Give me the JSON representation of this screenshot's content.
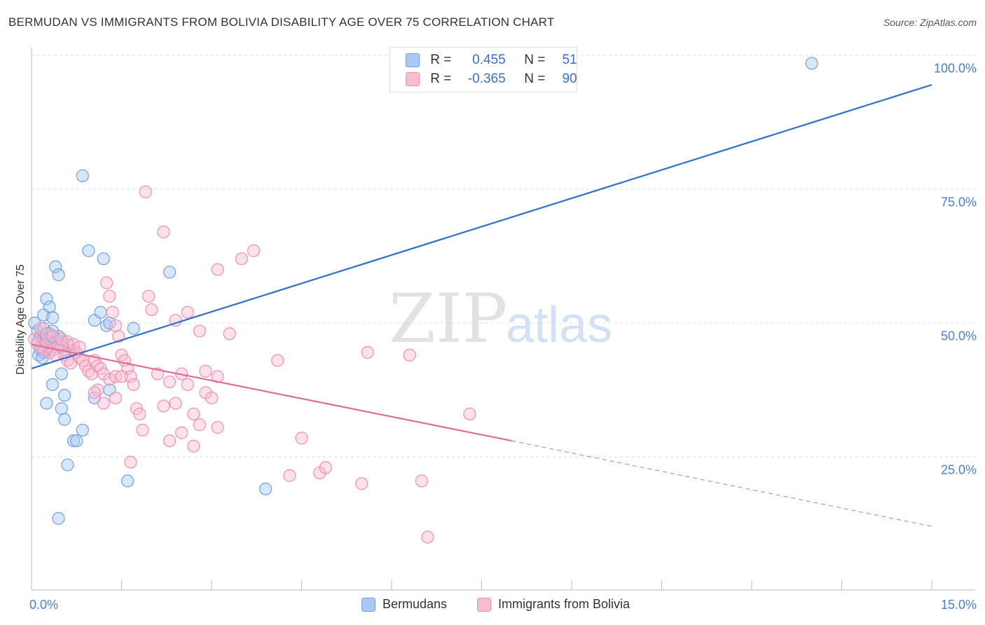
{
  "title": "BERMUDAN VS IMMIGRANTS FROM BOLIVIA DISABILITY AGE OVER 75 CORRELATION CHART",
  "source": "Source: ZipAtlas.com",
  "watermark": {
    "zip": "ZIP",
    "atlas": "atlas"
  },
  "legend": {
    "rows": [
      {
        "r_label": "R =",
        "r_value": "0.455",
        "n_label": "N =",
        "n_value": "51",
        "color": "#a9c8f5"
      },
      {
        "r_label": "R =",
        "r_value": "-0.365",
        "n_label": "N =",
        "n_value": "90",
        "color": "#f8bcd0"
      }
    ]
  },
  "bottom_legend": [
    {
      "label": "Bermudans",
      "color": "#a9c8f5"
    },
    {
      "label": "Immigrants from Bolivia",
      "color": "#f8bcd0"
    }
  ],
  "chart_data": {
    "type": "scatter",
    "title": "BERMUDAN VS IMMIGRANTS FROM BOLIVIA DISABILITY AGE OVER 75 CORRELATION CHART",
    "xlabel": "",
    "ylabel": "Disability Age Over 75",
    "xlim": [
      0,
      15
    ],
    "ylim": [
      0,
      105
    ],
    "x_tick_labels": [
      "0.0%",
      "15.0%"
    ],
    "y_ticks": [
      25,
      50,
      75,
      100
    ],
    "y_tick_labels": [
      "25.0%",
      "50.0%",
      "75.0%",
      "100.0%"
    ],
    "grid": true,
    "series": [
      {
        "name": "Bermudans",
        "color": "#6fa0e6",
        "fill": "#a9c8f5",
        "trend": {
          "x": [
            0,
            15
          ],
          "y": [
            41.5,
            94.5
          ],
          "color": "#2f6fd0",
          "dashed_from": null
        },
        "points": [
          [
            0.05,
            50
          ],
          [
            0.1,
            48.5
          ],
          [
            0.15,
            47.5
          ],
          [
            0.2,
            47
          ],
          [
            0.1,
            46.5
          ],
          [
            0.25,
            46
          ],
          [
            0.3,
            45.5
          ],
          [
            0.15,
            45
          ],
          [
            0.35,
            45.5
          ],
          [
            0.2,
            44.5
          ],
          [
            0.4,
            47
          ],
          [
            0.5,
            46.5
          ],
          [
            0.55,
            45
          ],
          [
            0.45,
            47.5
          ],
          [
            0.6,
            46
          ],
          [
            0.3,
            48
          ],
          [
            0.2,
            49
          ],
          [
            0.35,
            48.5
          ],
          [
            0.12,
            44
          ],
          [
            0.18,
            43.5
          ],
          [
            0.4,
            60.5
          ],
          [
            0.45,
            59
          ],
          [
            0.25,
            54.5
          ],
          [
            0.3,
            53
          ],
          [
            0.2,
            51.5
          ],
          [
            0.35,
            51
          ],
          [
            0.85,
            77.5
          ],
          [
            0.95,
            63.5
          ],
          [
            1.2,
            62
          ],
          [
            2.3,
            59.5
          ],
          [
            1.05,
            50.5
          ],
          [
            1.25,
            49.5
          ],
          [
            1.15,
            52
          ],
          [
            1.3,
            50
          ],
          [
            1.7,
            49
          ],
          [
            0.5,
            40.5
          ],
          [
            0.35,
            38.5
          ],
          [
            0.55,
            36.5
          ],
          [
            0.25,
            35
          ],
          [
            0.5,
            34
          ],
          [
            1.05,
            36
          ],
          [
            1.3,
            37.5
          ],
          [
            0.55,
            32
          ],
          [
            0.85,
            30
          ],
          [
            0.7,
            28
          ],
          [
            0.75,
            28
          ],
          [
            0.6,
            23.5
          ],
          [
            1.6,
            20.5
          ],
          [
            3.9,
            19
          ],
          [
            0.45,
            13.5
          ],
          [
            13.0,
            98.5
          ]
        ]
      },
      {
        "name": "Immigrants from Bolivia",
        "color": "#ef8fb0",
        "fill": "#f8bcd0",
        "trend": {
          "x": [
            0,
            8.0
          ],
          "y": [
            46,
            28
          ],
          "color": "#e06c98",
          "dashed_to": {
            "x": 15,
            "y": 12
          }
        },
        "points": [
          [
            0.05,
            47
          ],
          [
            0.1,
            46
          ],
          [
            0.15,
            45.5
          ],
          [
            0.2,
            45
          ],
          [
            0.25,
            46.5
          ],
          [
            0.3,
            44.5
          ],
          [
            0.35,
            45
          ],
          [
            0.4,
            44
          ],
          [
            0.45,
            46
          ],
          [
            0.5,
            45.5
          ],
          [
            0.55,
            44
          ],
          [
            0.6,
            43
          ],
          [
            0.65,
            42.5
          ],
          [
            0.7,
            45
          ],
          [
            0.75,
            44.5
          ],
          [
            0.8,
            43.5
          ],
          [
            0.85,
            43
          ],
          [
            0.9,
            42
          ],
          [
            0.95,
            41
          ],
          [
            1.0,
            40.5
          ],
          [
            0.15,
            49
          ],
          [
            0.25,
            48
          ],
          [
            0.35,
            47.5
          ],
          [
            0.5,
            47
          ],
          [
            0.6,
            46.5
          ],
          [
            0.7,
            46
          ],
          [
            0.8,
            45.5
          ],
          [
            1.05,
            43
          ],
          [
            1.1,
            42
          ],
          [
            1.15,
            41.5
          ],
          [
            1.2,
            40.5
          ],
          [
            1.3,
            39.5
          ],
          [
            1.4,
            40
          ],
          [
            1.5,
            44
          ],
          [
            1.55,
            43
          ],
          [
            1.6,
            41.5
          ],
          [
            1.65,
            40
          ],
          [
            1.7,
            38.5
          ],
          [
            1.75,
            34
          ],
          [
            1.8,
            33
          ],
          [
            1.85,
            30
          ],
          [
            1.95,
            55
          ],
          [
            1.9,
            74.5
          ],
          [
            2.0,
            52.5
          ],
          [
            2.2,
            67
          ],
          [
            1.25,
            57.5
          ],
          [
            1.3,
            55
          ],
          [
            1.35,
            52
          ],
          [
            1.4,
            49.5
          ],
          [
            1.45,
            47.5
          ],
          [
            1.2,
            35
          ],
          [
            1.4,
            36
          ],
          [
            1.1,
            37.5
          ],
          [
            1.05,
            37
          ],
          [
            2.1,
            40.5
          ],
          [
            2.2,
            34.5
          ],
          [
            2.3,
            39
          ],
          [
            2.4,
            35
          ],
          [
            2.5,
            40.5
          ],
          [
            2.6,
            38.5
          ],
          [
            2.7,
            33
          ],
          [
            2.8,
            31
          ],
          [
            2.9,
            37
          ],
          [
            3.0,
            36
          ],
          [
            3.1,
            40
          ],
          [
            2.5,
            29.5
          ],
          [
            2.7,
            27
          ],
          [
            2.3,
            28
          ],
          [
            2.9,
            41
          ],
          [
            3.1,
            30.5
          ],
          [
            2.4,
            50.5
          ],
          [
            2.6,
            52
          ],
          [
            2.8,
            48.5
          ],
          [
            3.3,
            48
          ],
          [
            3.5,
            62
          ],
          [
            3.7,
            63.5
          ],
          [
            3.1,
            60
          ],
          [
            4.1,
            43
          ],
          [
            4.5,
            28.5
          ],
          [
            4.3,
            21.5
          ],
          [
            4.8,
            22
          ],
          [
            4.9,
            23
          ],
          [
            5.6,
            44.5
          ],
          [
            5.5,
            20
          ],
          [
            6.3,
            44
          ],
          [
            6.5,
            20.5
          ],
          [
            6.6,
            10
          ],
          [
            7.3,
            33
          ],
          [
            1.65,
            24
          ],
          [
            1.5,
            40
          ]
        ]
      }
    ]
  }
}
